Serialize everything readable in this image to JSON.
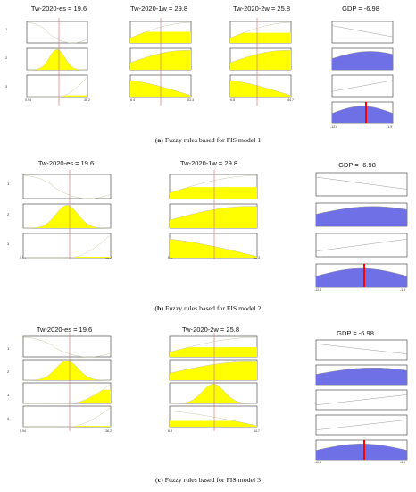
{
  "colors": {
    "mf_fill": "#ffff00",
    "output_fill": "#6f6fe6",
    "input_line": "#d97a7a",
    "output_line": "#ff0000",
    "curve": "#9a9a9a",
    "input_curve_light": "#c8c8a8"
  },
  "panels": [
    {
      "id": "a",
      "caption_letter": "a",
      "caption_text": "Fuzzy rules based for FIS model 1",
      "rule_numbers": [
        "1",
        "2",
        "3"
      ],
      "inputs": [
        {
          "title": "Tw-2020-es = 19.6",
          "min_label": "0.94",
          "max_label": "38.2"
        },
        {
          "title": "Tw-2020-1w = 29.8",
          "min_label": "6.4",
          "max_label": "53.3"
        },
        {
          "title": "Tw-2020-2w = 25.8",
          "min_label": "6.8",
          "max_label": "44.7"
        }
      ],
      "output": {
        "title": "GDP = -6.98",
        "min_label": "-12.6",
        "max_label": "-1.9"
      }
    },
    {
      "id": "b",
      "caption_letter": "b",
      "caption_text": "Fuzzy rules based for FIS model 2",
      "rule_numbers": [
        "1",
        "2",
        "3"
      ],
      "inputs": [
        {
          "title": "Tw-2020-es = 19.6",
          "min_label": "0.94",
          "max_label": "38.2"
        },
        {
          "title": "Tw-2020-1w = 29.8",
          "min_label": "6.4",
          "max_label": "53.3"
        }
      ],
      "output": {
        "title": "GDP = -6.98",
        "min_label": "-12.6",
        "max_label": "-1.9"
      }
    },
    {
      "id": "c",
      "caption_letter": "c",
      "caption_text": "Fuzzy rules based for FIS model 3",
      "rule_numbers": [
        "1",
        "2",
        "3",
        "4"
      ],
      "inputs": [
        {
          "title": "Tw-2020-es = 19.6",
          "min_label": "0.94",
          "max_label": "38.2"
        },
        {
          "title": "Tw-2020-2w = 25.8",
          "min_label": "6.8",
          "max_label": "44.7"
        }
      ],
      "output": {
        "title": "GDP = -6.98",
        "min_label": "-12.6",
        "max_label": "-1.9"
      }
    }
  ]
}
